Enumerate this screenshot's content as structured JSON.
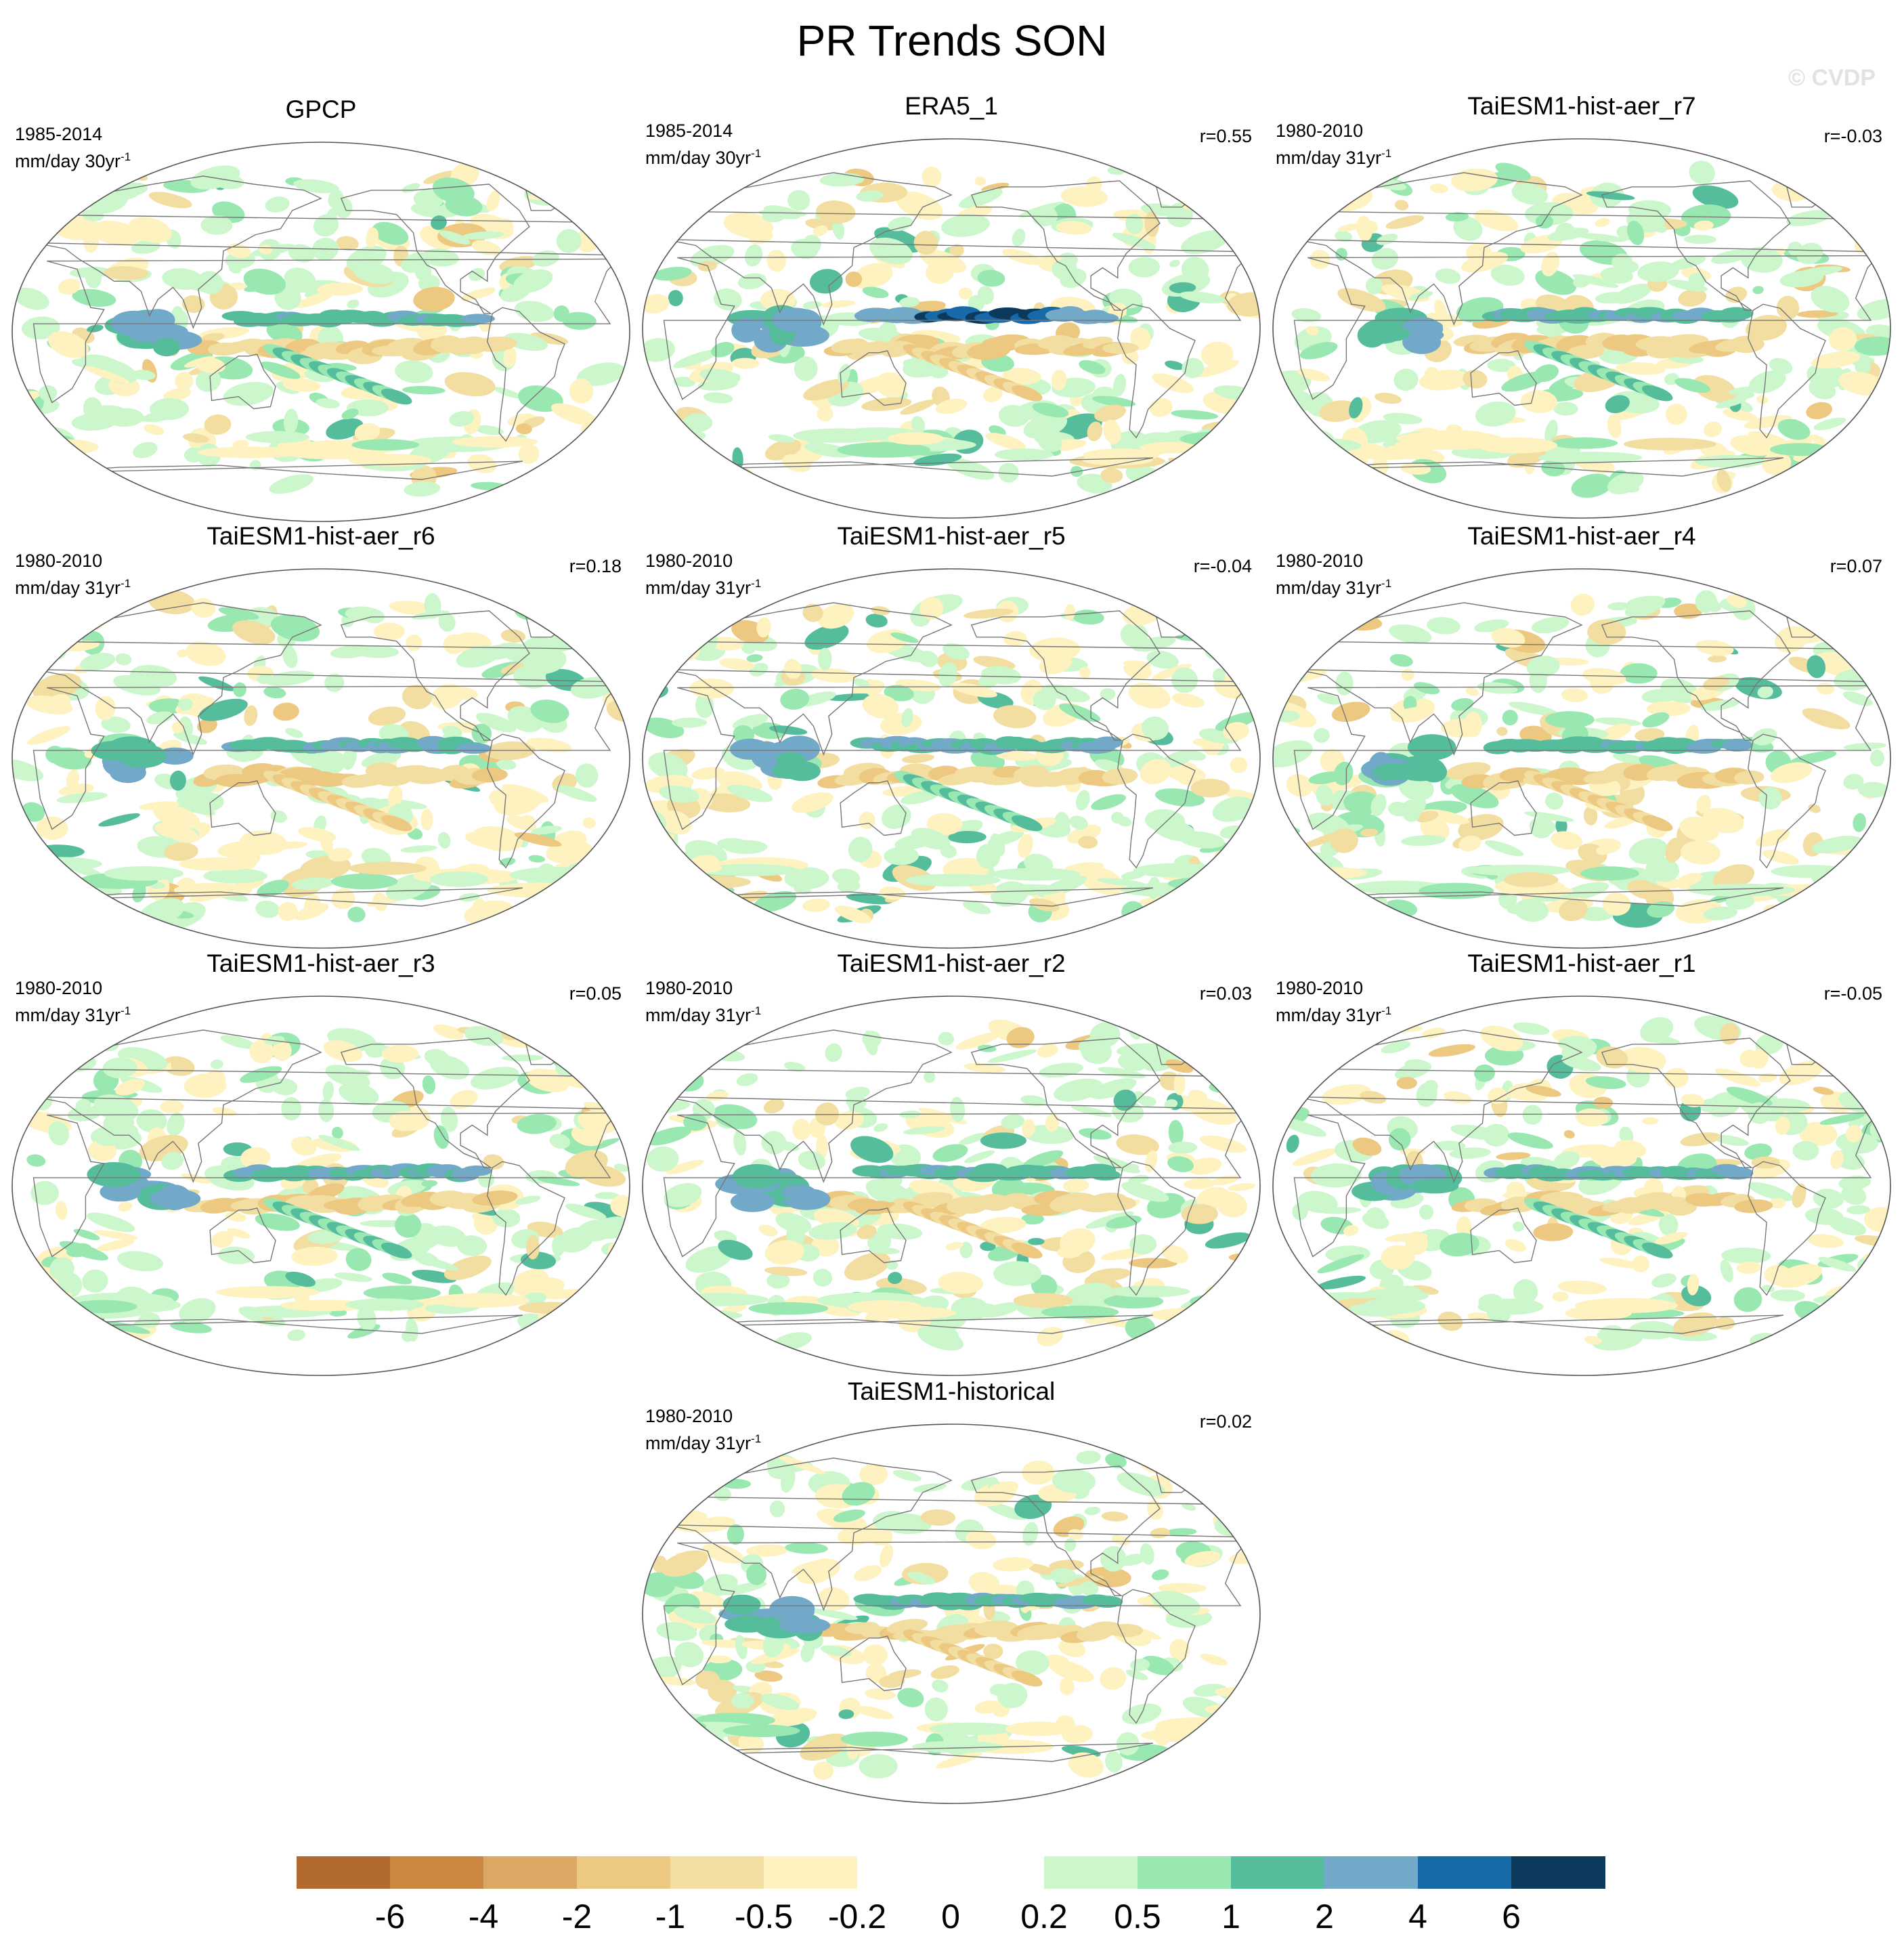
{
  "title": "PR Trends SON",
  "watermark": "© CVDP",
  "panels": [
    {
      "title": "GPCP",
      "period": "1985-2014",
      "units": "mm/day 30yr",
      "units_exp": "-1",
      "r": ""
    },
    {
      "title": "ERA5_1",
      "period": "1985-2014",
      "units": "mm/day 30yr",
      "units_exp": "-1",
      "r": "r=0.55"
    },
    {
      "title": "TaiESM1-hist-aer_r7",
      "period": "1980-2010",
      "units": "mm/day 31yr",
      "units_exp": "-1",
      "r": "r=-0.03"
    },
    {
      "title": "TaiESM1-hist-aer_r6",
      "period": "1980-2010",
      "units": "mm/day 31yr",
      "units_exp": "-1",
      "r": "r=0.18"
    },
    {
      "title": "TaiESM1-hist-aer_r5",
      "period": "1980-2010",
      "units": "mm/day 31yr",
      "units_exp": "-1",
      "r": "r=-0.04"
    },
    {
      "title": "TaiESM1-hist-aer_r4",
      "period": "1980-2010",
      "units": "mm/day 31yr",
      "units_exp": "-1",
      "r": "r=0.07"
    },
    {
      "title": "TaiESM1-hist-aer_r3",
      "period": "1980-2010",
      "units": "mm/day 31yr",
      "units_exp": "-1",
      "r": "r=0.05"
    },
    {
      "title": "TaiESM1-hist-aer_r2",
      "period": "1980-2010",
      "units": "mm/day 31yr",
      "units_exp": "-1",
      "r": "r=0.03"
    },
    {
      "title": "TaiESM1-hist-aer_r1",
      "period": "1980-2010",
      "units": "mm/day 31yr",
      "units_exp": "-1",
      "r": "r=-0.05"
    },
    {
      "title": "TaiESM1-historical",
      "period": "1980-2010",
      "units": "mm/day 31yr",
      "units_exp": "-1",
      "r": "r=0.02"
    }
  ],
  "colorbar": {
    "colors": [
      "#b36a2e",
      "#cc8742",
      "#dba863",
      "#ecc880",
      "#f3dea2",
      "#fdf2c0",
      "#ffffff",
      "#ffffff",
      "#ccf7cc",
      "#99e8b2",
      "#56bd9c",
      "#72a8c8",
      "#1769a8",
      "#0b3a5c"
    ],
    "labels": [
      "-6",
      "-4",
      "-2",
      "-1",
      "-0.5",
      "-0.2",
      "0",
      "0.2",
      "0.5",
      "1",
      "2",
      "4",
      "6"
    ]
  }
}
